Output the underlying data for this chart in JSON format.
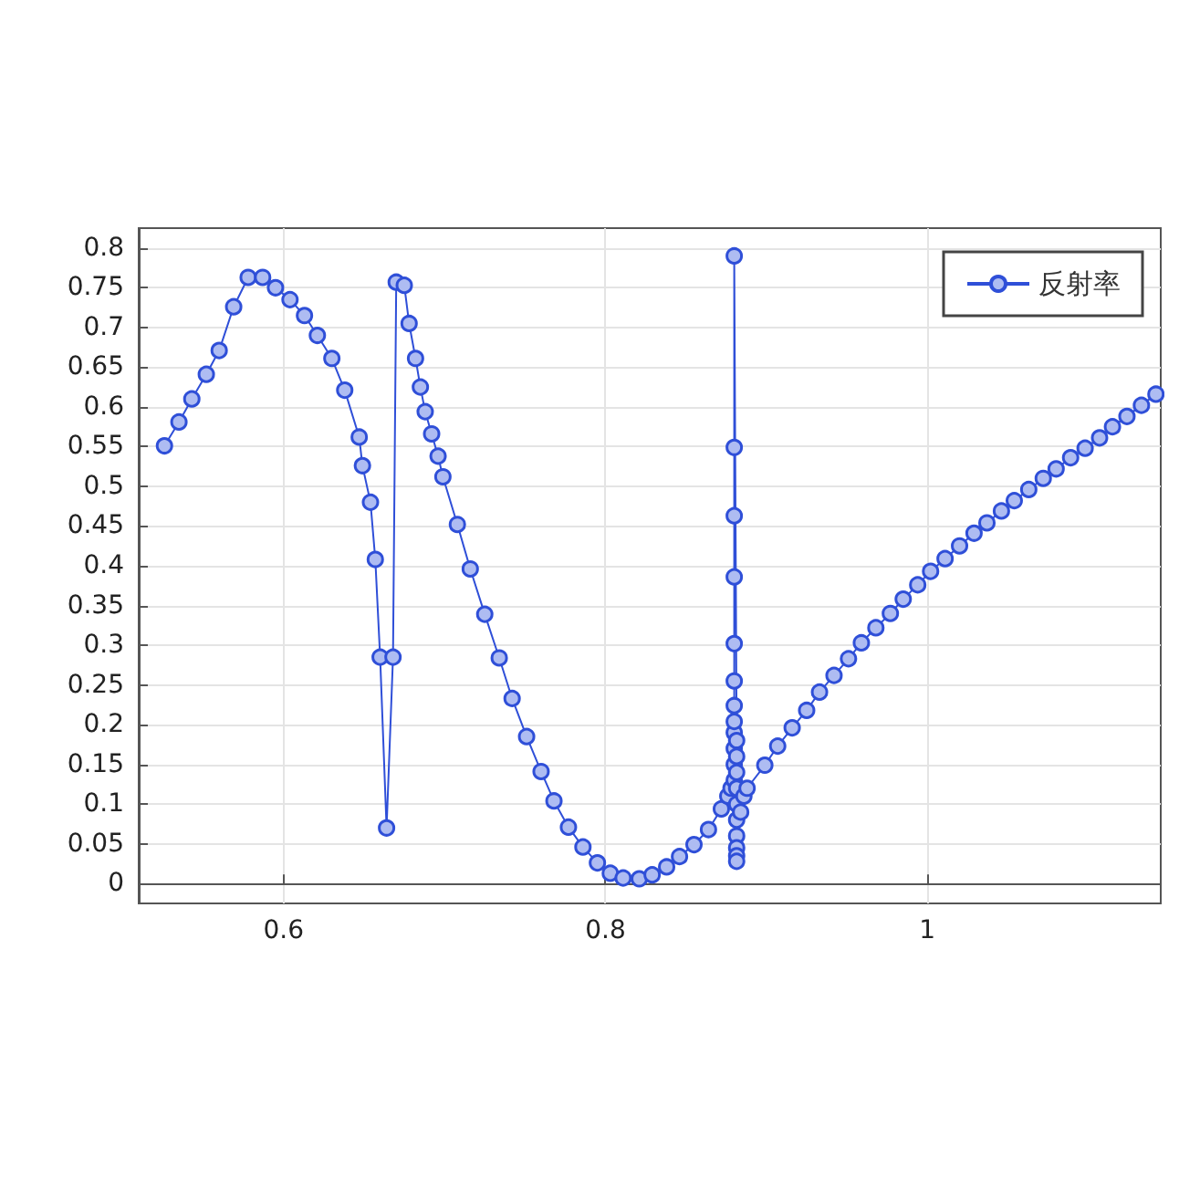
{
  "chart_data": {
    "type": "line",
    "marker": "circle",
    "grid": true,
    "legend": "top right",
    "xlim": [
      0.51,
      1.145
    ],
    "xticks": [
      0.6,
      0.8,
      1
    ],
    "ylim": [
      -0.025,
      0.825
    ],
    "yticks": [
      0,
      0.05,
      0.1,
      0.15,
      0.2,
      0.25,
      0.3,
      0.35,
      0.4,
      0.45,
      0.5,
      0.55,
      0.6,
      0.65,
      0.7,
      0.75,
      0.8
    ],
    "series": [
      {
        "name": "反射率",
        "color": "#2f4fd8",
        "x": [
          0.526,
          0.535,
          0.543,
          0.552,
          0.56,
          0.569,
          0.578,
          0.587,
          0.595,
          0.604,
          0.613,
          0.621,
          0.63,
          0.638,
          0.647,
          0.649,
          0.654,
          0.657,
          0.66,
          0.664,
          0.668,
          0.67,
          0.675,
          0.678,
          0.682,
          0.685,
          0.688,
          0.692,
          0.696,
          0.699,
          0.708,
          0.716,
          0.725,
          0.734,
          0.742,
          0.751,
          0.76,
          0.768,
          0.777,
          0.786,
          0.795,
          0.803,
          0.811,
          0.821,
          0.829,
          0.838,
          0.846,
          0.855,
          0.864,
          0.872,
          0.876,
          0.878,
          0.88,
          0.88,
          0.88,
          0.88,
          0.88,
          0.88,
          0.88,
          0.88,
          0.88,
          0.88,
          0.88,
          0.88,
          0.8815,
          0.8815,
          0.8815,
          0.8815,
          0.8815,
          0.8815,
          0.8815,
          0.8815,
          0.8815,
          0.8815,
          0.884,
          0.886,
          0.888,
          0.899,
          0.907,
          0.916,
          0.925,
          0.933,
          0.942,
          0.951,
          0.959,
          0.968,
          0.977,
          0.985,
          0.994,
          1.002,
          1.011,
          1.02,
          1.029,
          1.037,
          1.046,
          1.054,
          1.063,
          1.072,
          1.08,
          1.089,
          1.098,
          1.107,
          1.115,
          1.124,
          1.133,
          1.142
        ],
        "values": [
          0.551,
          0.581,
          0.61,
          0.641,
          0.671,
          0.726,
          0.763,
          0.763,
          0.75,
          0.735,
          0.715,
          0.69,
          0.661,
          0.621,
          0.562,
          0.526,
          0.48,
          0.408,
          0.285,
          0.07,
          0.285,
          0.757,
          0.753,
          0.705,
          0.661,
          0.625,
          0.594,
          0.566,
          0.538,
          0.512,
          0.452,
          0.396,
          0.339,
          0.284,
          0.233,
          0.185,
          0.141,
          0.104,
          0.071,
          0.046,
          0.026,
          0.013,
          0.007,
          0.006,
          0.011,
          0.021,
          0.034,
          0.049,
          0.068,
          0.094,
          0.11,
          0.12,
          0.13,
          0.15,
          0.17,
          0.19,
          0.204,
          0.224,
          0.255,
          0.302,
          0.386,
          0.463,
          0.549,
          0.79,
          0.18,
          0.16,
          0.14,
          0.12,
          0.1,
          0.08,
          0.06,
          0.045,
          0.035,
          0.028,
          0.09,
          0.11,
          0.12,
          0.149,
          0.173,
          0.196,
          0.218,
          0.241,
          0.262,
          0.283,
          0.303,
          0.322,
          0.34,
          0.358,
          0.376,
          0.393,
          0.409,
          0.425,
          0.441,
          0.454,
          0.469,
          0.482,
          0.496,
          0.51,
          0.522,
          0.536,
          0.548,
          0.561,
          0.575,
          0.588,
          0.602,
          0.616
        ]
      }
    ]
  }
}
